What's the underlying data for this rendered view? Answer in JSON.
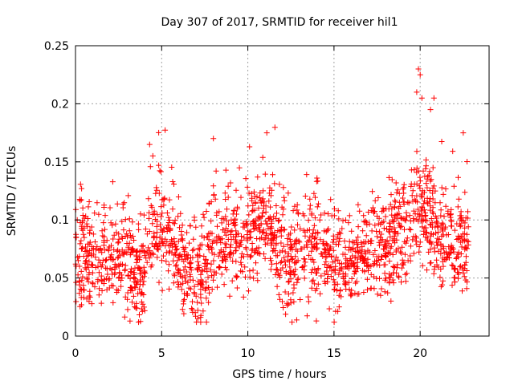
{
  "chart_data": {
    "type": "scatter",
    "title": "Day 307 of 2017, SRMTID for receiver hil1",
    "xlabel": "GPS time / hours",
    "ylabel": "SRMTID / TECUs",
    "xlim": [
      0,
      24
    ],
    "ylim": [
      0,
      0.25
    ],
    "xticks": [
      0,
      5,
      10,
      15,
      20
    ],
    "yticks": [
      0,
      0.05,
      0.1,
      0.15,
      0.2,
      0.25
    ],
    "xtick_labels": [
      "0",
      "5",
      "10",
      "15",
      "20"
    ],
    "ytick_labels": [
      "0",
      "0.05",
      "0.1",
      "0.15",
      "0.2",
      "0.25"
    ],
    "grid": true,
    "marker": "+",
    "color": "#ff0000",
    "series": [
      {
        "name": "SRMTID",
        "points_note": "dense scatter of ~2000 points from 0 to ~22.8 h; generated from the trend profile below",
        "trend_x": [
          0,
          0.5,
          1,
          1.5,
          2,
          2.5,
          3,
          3.5,
          4,
          4.5,
          5,
          5.5,
          6,
          6.5,
          7,
          7.5,
          8,
          8.5,
          9,
          9.5,
          10,
          10.5,
          11,
          11.5,
          12,
          12.5,
          13,
          13.5,
          14,
          14.5,
          15,
          15.5,
          16,
          16.5,
          17,
          17.5,
          18,
          18.5,
          19,
          19.5,
          20,
          20.5,
          21,
          21.5,
          22,
          22.5,
          22.8
        ],
        "trend_y": [
          0.075,
          0.07,
          0.068,
          0.072,
          0.075,
          0.07,
          0.065,
          0.06,
          0.055,
          0.085,
          0.095,
          0.09,
          0.07,
          0.06,
          0.05,
          0.055,
          0.075,
          0.08,
          0.085,
          0.09,
          0.085,
          0.09,
          0.1,
          0.09,
          0.07,
          0.06,
          0.07,
          0.075,
          0.08,
          0.075,
          0.065,
          0.06,
          0.065,
          0.07,
          0.075,
          0.08,
          0.075,
          0.085,
          0.09,
          0.1,
          0.12,
          0.1,
          0.085,
          0.08,
          0.075,
          0.08,
          0.08
        ],
        "spread": 0.022,
        "extremes": [
          {
            "x": 19.9,
            "y": 0.23
          },
          {
            "x": 20.0,
            "y": 0.225
          },
          {
            "x": 19.8,
            "y": 0.21
          },
          {
            "x": 20.1,
            "y": 0.205
          },
          {
            "x": 20.8,
            "y": 0.205
          },
          {
            "x": 20.6,
            "y": 0.195
          },
          {
            "x": 11.1,
            "y": 0.175
          },
          {
            "x": 8.0,
            "y": 0.17
          },
          {
            "x": 22.5,
            "y": 0.175
          },
          {
            "x": 4.3,
            "y": 0.165
          },
          {
            "x": 10.1,
            "y": 0.163
          },
          {
            "x": 7.6,
            "y": 0.012
          },
          {
            "x": 7.1,
            "y": 0.015
          }
        ]
      }
    ]
  }
}
